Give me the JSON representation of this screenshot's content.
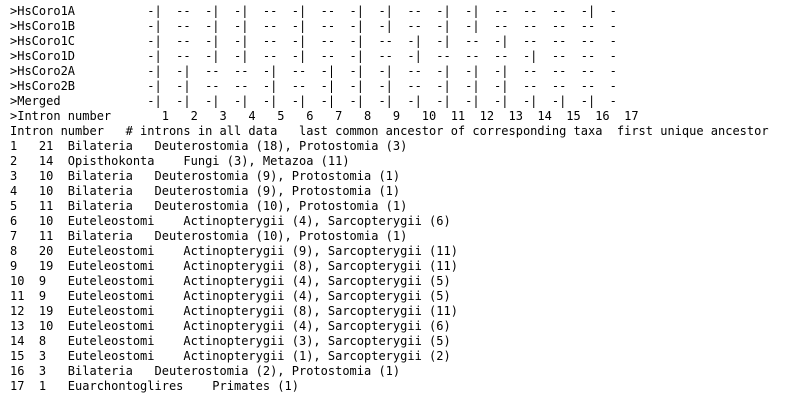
{
  "lines": [
    ">HsCoro1A          -|  --  -|  -|  --  -|  --  -|  -|  --  -|  -|  --  --  --  -|  -",
    ">HsCoro1B          -|  --  -|  -|  --  -|  --  -|  -|  --  -|  -|  --  --  --  --  -",
    ">HsCoro1C          -|  --  -|  -|  --  -|  --  -|  --  -|  -|  --  -|  --  --  --  -",
    ">HsCoro1D          -|  --  -|  -|  --  -|  --  -|  --  -|  --  --  --  -|  --  --  -",
    ">HsCoro2A          -|  -|  --  --  -|  --  -|  -|  -|  --  -|  -|  -|  --  --  --  -",
    ">HsCoro2B          -|  -|  --  --  -|  --  -|  -|  -|  --  -|  -|  -|  --  --  --  -",
    ">Merged            -|  -|  -|  -|  -|  -|  -|  -|  -|  -|  -|  -|  -|  -|  -|  -|  -",
    ">Intron number       1   2   3   4   5   6   7   8   9   10  11  12  13  14  15  16  17",
    "Intron number   # introns in all data   last common ancestor of corresponding taxa  first unique ancestor",
    "1   21  Bilateria   Deuterostomia (18), Protostomia (3)",
    "2   14  Opisthokonta    Fungi (3), Metazoa (11)",
    "3   10  Bilateria   Deuterostomia (9), Protostomia (1)",
    "4   10  Bilateria   Deuterostomia (9), Protostomia (1)",
    "5   11  Bilateria   Deuterostomia (10), Protostomia (1)",
    "6   10  Euteleostomi    Actinopterygii (4), Sarcopterygii (6)",
    "7   11  Bilateria   Deuterostomia (10), Protostomia (1)",
    "8   20  Euteleostomi    Actinopterygii (9), Sarcopterygii (11)",
    "9   19  Euteleostomi    Actinopterygii (8), Sarcopterygii (11)",
    "10  9   Euteleostomi    Actinopterygii (4), Sarcopterygii (5)",
    "11  9   Euteleostomi    Actinopterygii (4), Sarcopterygii (5)",
    "12  19  Euteleostomi    Actinopterygii (8), Sarcopterygii (11)",
    "13  10  Euteleostomi    Actinopterygii (4), Sarcopterygii (6)",
    "14  8   Euteleostomi    Actinopterygii (3), Sarcopterygii (5)",
    "15  3   Euteleostomi    Actinopterygii (1), Sarcopterygii (2)",
    "16  3   Bilateria   Deuterostomia (2), Protostomia (1)",
    "17  1   Euarchontoglires    Primates (1)"
  ]
}
